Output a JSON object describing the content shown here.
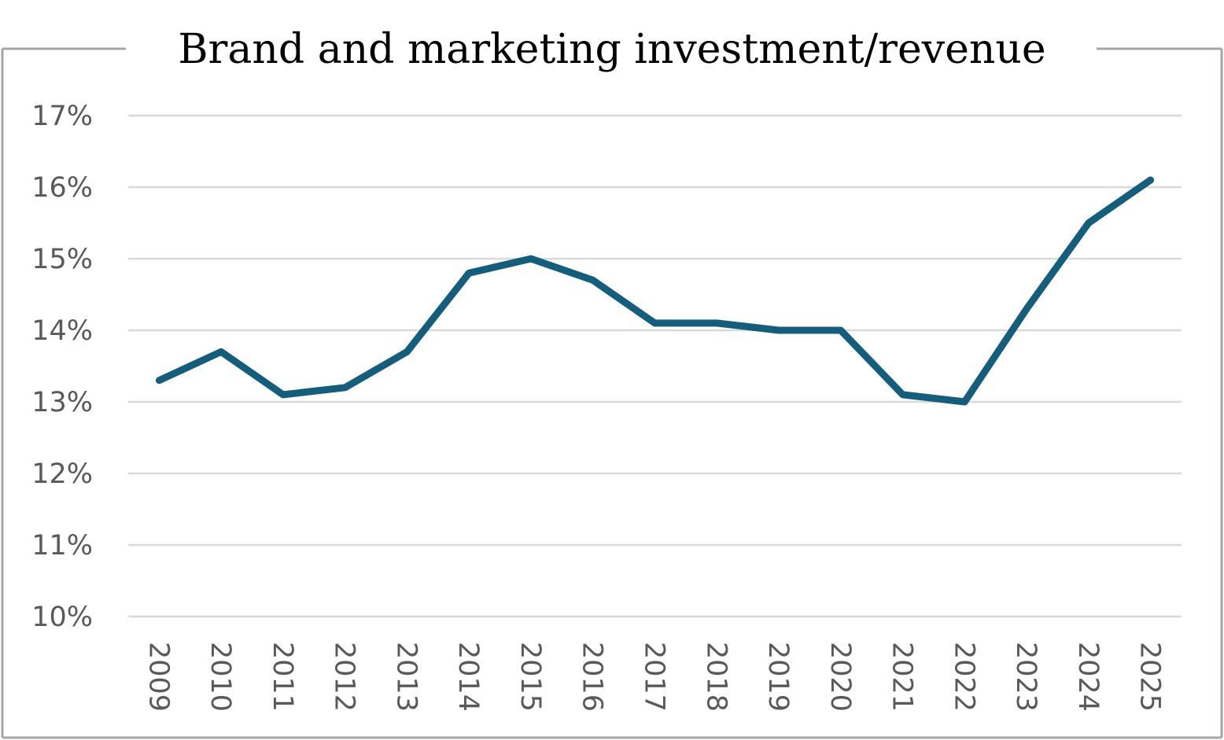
{
  "chart_data": {
    "type": "line",
    "title": "Brand and marketing investment/revenue",
    "xlabel": "",
    "ylabel": "",
    "categories": [
      "2009",
      "2010",
      "2011",
      "2012",
      "2013",
      "2014",
      "2015",
      "2016",
      "2017",
      "2018",
      "2019",
      "2020",
      "2021",
      "2022",
      "2023",
      "2024",
      "2025"
    ],
    "series": [
      {
        "values": [
          13.3,
          13.7,
          13.1,
          13.2,
          13.7,
          14.8,
          15.0,
          14.7,
          14.1,
          14.1,
          14.0,
          14.0,
          13.1,
          13.0,
          14.3,
          15.5,
          16.1
        ],
        "color": "#145e7d"
      }
    ],
    "y_ticks": [
      "10%",
      "11%",
      "12%",
      "13%",
      "14%",
      "15%",
      "16%",
      "17%"
    ],
    "ylim": [
      10,
      17
    ],
    "grid": true,
    "legend": "none"
  }
}
